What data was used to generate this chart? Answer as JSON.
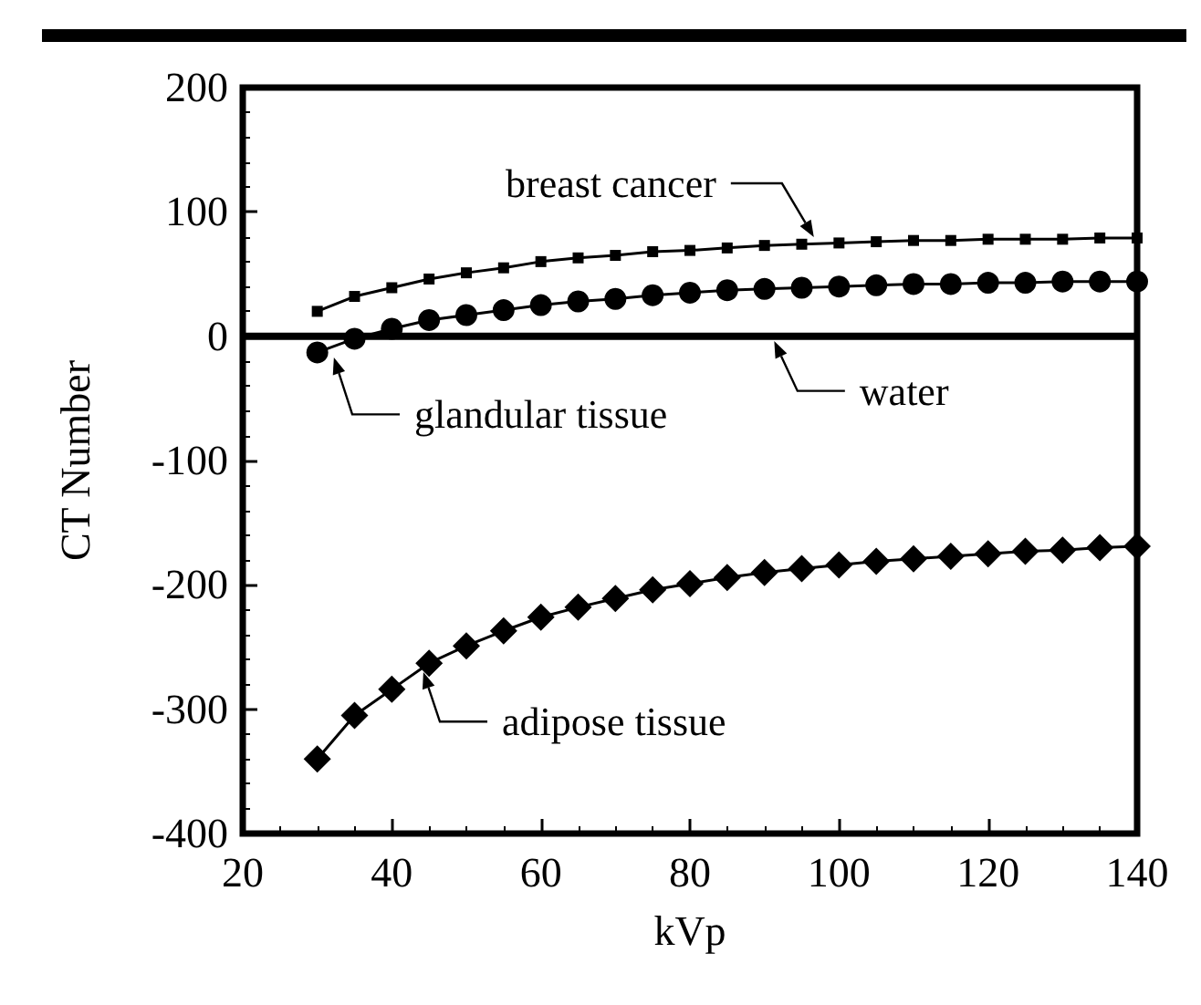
{
  "chart_data": {
    "type": "line",
    "xlabel": "kVp",
    "ylabel": "CT Number",
    "xlim": [
      20,
      140
    ],
    "xticks": [
      20,
      40,
      60,
      80,
      100,
      120,
      140
    ],
    "ylim": [
      -400,
      200
    ],
    "yticks": [
      -400,
      -300,
      -200,
      -100,
      0,
      100,
      200
    ],
    "x": [
      30,
      35,
      40,
      45,
      50,
      55,
      60,
      65,
      70,
      75,
      80,
      85,
      90,
      95,
      100,
      105,
      110,
      115,
      120,
      125,
      130,
      135,
      140
    ],
    "series": [
      {
        "color": "#000000",
        "marker": "square",
        "values": [
          20,
          32,
          39,
          46,
          51,
          55,
          60,
          63,
          65,
          68,
          69,
          71,
          73,
          74,
          75,
          76,
          77,
          77,
          78,
          78,
          78,
          79,
          79
        ]
      },
      {
        "color": "#000000",
        "marker": "circle",
        "values": [
          -13,
          -2,
          6,
          13,
          17,
          21,
          25,
          28,
          30,
          33,
          35,
          37,
          38,
          39,
          40,
          41,
          42,
          42,
          43,
          43,
          44,
          44,
          44
        ]
      },
      {
        "color": "#000000",
        "marker": "none",
        "x": [
          20,
          140
        ],
        "values": [
          0,
          0
        ]
      },
      {
        "color": "#000000",
        "marker": "diamond",
        "values": [
          -340,
          -305,
          -284,
          -263,
          -249,
          -237,
          -226,
          -218,
          -211,
          -204,
          -199,
          -194,
          -190,
          -187,
          -184,
          -181,
          -179,
          -177,
          -175,
          -173,
          -172,
          -170,
          -169
        ]
      }
    ],
    "annotations": [
      {
        "text": "breast cancer",
        "x": 97,
        "y": 76
      },
      {
        "text": "glandular tissue",
        "x": 32,
        "y": -13
      },
      {
        "text": "water",
        "x": 91,
        "y": 0
      },
      {
        "text": "adipose tissue",
        "x": 44,
        "y": -266
      }
    ]
  }
}
